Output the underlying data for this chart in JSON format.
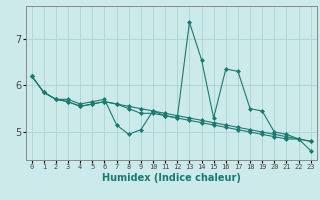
{
  "xlabel": "Humidex (Indice chaleur)",
  "ylabel": "",
  "background_color": "#cceaea",
  "line_color": "#1a7a6e",
  "grid_color": "#aad4d4",
  "x_data": [
    0,
    1,
    2,
    3,
    4,
    5,
    6,
    7,
    8,
    9,
    10,
    11,
    12,
    13,
    14,
    15,
    16,
    17,
    18,
    19,
    20,
    21,
    22,
    23
  ],
  "series": [
    [
      6.2,
      5.85,
      5.7,
      5.7,
      5.6,
      5.65,
      5.7,
      5.15,
      4.95,
      5.05,
      5.45,
      5.35,
      5.3,
      7.35,
      6.55,
      5.3,
      6.35,
      6.3,
      5.5,
      5.45,
      5.0,
      4.95,
      4.85,
      4.6
    ],
    [
      6.2,
      5.85,
      5.7,
      5.65,
      5.55,
      5.6,
      5.65,
      5.6,
      5.55,
      5.5,
      5.45,
      5.4,
      5.35,
      5.3,
      5.25,
      5.2,
      5.15,
      5.1,
      5.05,
      5.0,
      4.95,
      4.9,
      4.85,
      4.8
    ],
    [
      6.2,
      5.85,
      5.7,
      5.65,
      5.55,
      5.6,
      5.65,
      5.6,
      5.5,
      5.4,
      5.4,
      5.35,
      5.3,
      5.25,
      5.2,
      5.15,
      5.1,
      5.05,
      5.0,
      4.95,
      4.9,
      4.85,
      4.85,
      4.8
    ]
  ],
  "ylim": [
    4.4,
    7.7
  ],
  "yticks": [
    5,
    6,
    7
  ],
  "xticks": [
    0,
    1,
    2,
    3,
    4,
    5,
    6,
    7,
    8,
    9,
    10,
    11,
    12,
    13,
    14,
    15,
    16,
    17,
    18,
    19,
    20,
    21,
    22,
    23
  ],
  "marker": "D",
  "marker_size": 2,
  "linewidth": 0.8,
  "xlabel_fontsize": 7,
  "xlabel_color": "#1a7a6e",
  "tick_fontsize": 5,
  "ytick_fontsize": 7
}
